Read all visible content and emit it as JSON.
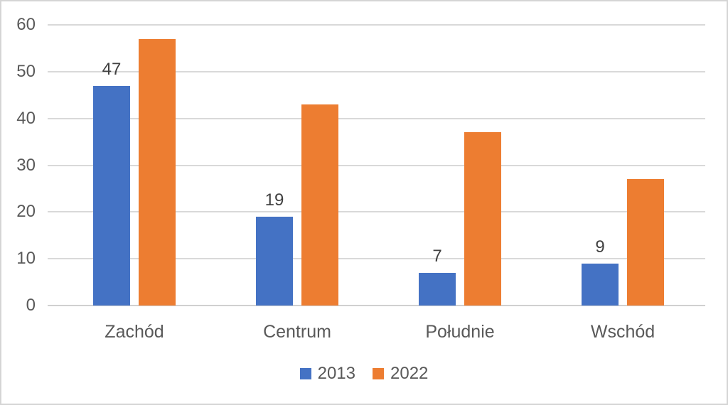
{
  "chart_data": {
    "type": "bar",
    "categories": [
      "Zachód",
      "Centrum",
      "Południe",
      "Wschód"
    ],
    "series": [
      {
        "name": "2013",
        "color": "#4472C4",
        "values": [
          47,
          19,
          7,
          9
        ],
        "data_labels": [
          "47",
          "19",
          "7",
          "9"
        ]
      },
      {
        "name": "2022",
        "color": "#ED7D31",
        "values": [
          57,
          43,
          37,
          27
        ],
        "data_labels": null
      }
    ],
    "title": "",
    "xlabel": "",
    "ylabel": "",
    "ylim": [
      0,
      60
    ],
    "yticks": [
      0,
      10,
      20,
      30,
      40,
      50,
      60
    ],
    "grid": true,
    "gridline_color": "#d9d9d9",
    "legend_position": "bottom",
    "legend_entries": [
      "2013",
      "2022"
    ],
    "axis_text_color": "#595959",
    "data_label_color": "#404040",
    "background_color": "#ffffff"
  }
}
